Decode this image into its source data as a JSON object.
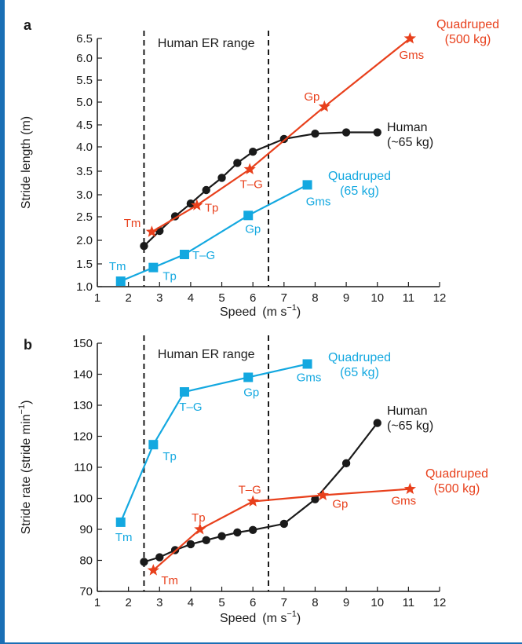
{
  "colors": {
    "human": "#1a1a1a",
    "quad500": "#e8401c",
    "quad65": "#13a8e0"
  },
  "chart_data": [
    {
      "panel": "a",
      "type": "line",
      "band_label": "Human ER range",
      "band": [
        2.5,
        6.5
      ],
      "xlabel": "Speed",
      "xunit": "(m s",
      "xunit_exp": "−1",
      "xunit_close": ")",
      "ylabel": "Stride length (m)",
      "xlim": [
        1,
        12
      ],
      "ylim": [
        1.0,
        6.5
      ],
      "xticks": [
        "1",
        "2",
        "3",
        "4",
        "5",
        "6",
        "7",
        "8",
        "9",
        "10",
        "11",
        "12"
      ],
      "yticks": [
        "1.0",
        "1.5",
        "2.0",
        "2.5",
        "3.0",
        "3.5",
        "4.0",
        "4.5",
        "5.0",
        "5.5",
        "6.0",
        "6.5"
      ],
      "series": [
        {
          "key": "human",
          "color_key": "human",
          "marker": "circle",
          "legend_lines": [
            "Human",
            "(~65 kg)"
          ],
          "x": [
            2.5,
            3.0,
            3.5,
            4.0,
            4.5,
            5.0,
            5.5,
            6.0,
            7.0,
            8.0,
            9.0,
            10.0
          ],
          "y": [
            1.88,
            2.2,
            2.51,
            2.8,
            3.1,
            3.36,
            3.67,
            3.9,
            4.18,
            4.3,
            4.33,
            4.33
          ],
          "point_labels": []
        },
        {
          "key": "quad500",
          "color_key": "quad500",
          "marker": "star",
          "legend_lines": [
            "Quadruped",
            "(500 kg)"
          ],
          "x": [
            2.75,
            4.2,
            5.9,
            8.3,
            11.05
          ],
          "y": [
            2.18,
            2.76,
            3.54,
            4.9,
            6.5
          ],
          "point_labels": [
            "Tm",
            "Tp",
            "T–G",
            "Gp",
            "Gms"
          ]
        },
        {
          "key": "quad65",
          "color_key": "quad65",
          "marker": "square",
          "legend_lines": [
            "Quadruped",
            "(65 kg)"
          ],
          "x": [
            1.75,
            2.8,
            3.8,
            5.85,
            7.75
          ],
          "y": [
            1.12,
            1.42,
            1.7,
            2.53,
            3.21
          ],
          "point_labels": [
            "Tm",
            "Tp",
            "T–G",
            "Gp",
            "Gms"
          ]
        }
      ]
    },
    {
      "panel": "b",
      "type": "line",
      "band_label": "Human ER range",
      "band": [
        2.5,
        6.5
      ],
      "xlabel": "Speed",
      "xunit": "(m s",
      "xunit_exp": "−1",
      "xunit_close": ")",
      "ylabel": "Stride rate (stride min",
      "ylabel_exp": "−1",
      "ylabel_close": ")",
      "xlim": [
        1,
        12
      ],
      "ylim": [
        70,
        150
      ],
      "xticks": [
        "1",
        "2",
        "3",
        "4",
        "5",
        "6",
        "7",
        "8",
        "9",
        "10",
        "11",
        "12"
      ],
      "yticks": [
        "70",
        "80",
        "90",
        "100",
        "110",
        "120",
        "130",
        "140",
        "150"
      ],
      "series": [
        {
          "key": "human",
          "color_key": "human",
          "marker": "circle",
          "legend_lines": [
            "Human",
            "(~65 kg)"
          ],
          "x": [
            2.5,
            3.0,
            3.5,
            4.0,
            4.5,
            5.0,
            5.5,
            6.0,
            7.0,
            8.0,
            9.0,
            10.0
          ],
          "y": [
            79.5,
            81,
            83.3,
            85.2,
            86.5,
            87.8,
            89,
            89.8,
            91.8,
            99.7,
            111.3,
            124.3
          ],
          "point_labels": []
        },
        {
          "key": "quad500",
          "color_key": "quad500",
          "marker": "star",
          "legend_lines": [
            "Quadruped",
            "(500 kg)"
          ],
          "x": [
            2.8,
            4.3,
            6.0,
            8.25,
            11.05
          ],
          "y": [
            76.8,
            90,
            99,
            101,
            103
          ],
          "point_labels": [
            "Tm",
            "Tp",
            "T–G",
            "Gp",
            "Gms"
          ]
        },
        {
          "key": "quad65",
          "color_key": "quad65",
          "marker": "square",
          "legend_lines": [
            "Quadruped",
            "(65 kg)"
          ],
          "x": [
            1.75,
            2.8,
            3.8,
            5.85,
            7.75
          ],
          "y": [
            92.3,
            117.3,
            134.3,
            139,
            143.3
          ],
          "point_labels": [
            "Tm",
            "Tp",
            "T–G",
            "Gp",
            "Gms"
          ]
        }
      ]
    }
  ]
}
